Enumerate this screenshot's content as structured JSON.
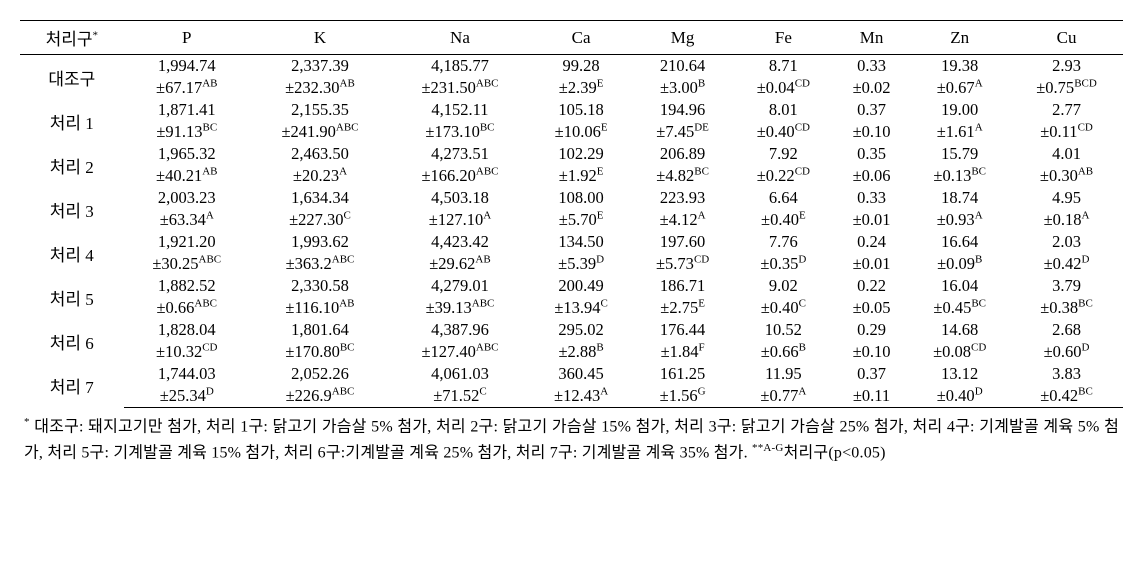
{
  "table": {
    "header_star": "*",
    "columns": [
      "처리구",
      "P",
      "K",
      "Na",
      "Ca",
      "Mg",
      "Fe",
      "Mn",
      "Zn",
      "Cu"
    ],
    "rows": [
      {
        "label": "대조구",
        "v": [
          "1,994.74",
          "2,337.39",
          "4,185.77",
          "99.28",
          "210.64",
          "8.71",
          "0.33",
          "19.38",
          "2.93"
        ],
        "sd": [
          "±67.17",
          "±232.30",
          "±231.50",
          "±2.39",
          "±3.00",
          "±0.04",
          "±0.02",
          "±0.67",
          "±0.75"
        ],
        "sup": [
          "AB",
          "AB",
          "ABC",
          "E",
          "B",
          "CD",
          "",
          "A",
          "BCD"
        ]
      },
      {
        "label": "처리 1",
        "v": [
          "1,871.41",
          "2,155.35",
          "4,152.11",
          "105.18",
          "194.96",
          "8.01",
          "0.37",
          "19.00",
          "2.77"
        ],
        "sd": [
          "±91.13",
          "±241.90",
          "±173.10",
          "±10.06",
          "±7.45",
          "±0.40",
          "±0.10",
          "±1.61",
          "±0.11"
        ],
        "sup": [
          "BC",
          "ABC",
          "BC",
          "E",
          "DE",
          "CD",
          "",
          "A",
          "CD"
        ]
      },
      {
        "label": "처리 2",
        "v": [
          "1,965.32",
          "2,463.50",
          "4,273.51",
          "102.29",
          "206.89",
          "7.92",
          "0.35",
          "15.79",
          "4.01"
        ],
        "sd": [
          "±40.21",
          "±20.23",
          "±166.20",
          "±1.92",
          "±4.82",
          "±0.22",
          "±0.06",
          "±0.13",
          "±0.30"
        ],
        "sup": [
          "AB",
          "A",
          "ABC",
          "E",
          "BC",
          "CD",
          "",
          "BC",
          "AB"
        ]
      },
      {
        "label": "처리 3",
        "v": [
          "2,003.23",
          "1,634.34",
          "4,503.18",
          "108.00",
          "223.93",
          "6.64",
          "0.33",
          "18.74",
          "4.95"
        ],
        "sd": [
          "±63.34",
          "±227.30",
          "±127.10",
          "±5.70",
          "±4.12",
          "±0.40",
          "±0.01",
          "±0.93",
          "±0.18"
        ],
        "sup": [
          "A",
          "C",
          "A",
          "E",
          "A",
          "E",
          "",
          "A",
          "A"
        ]
      },
      {
        "label": "처리 4",
        "v": [
          "1,921.20",
          "1,993.62",
          "4,423.42",
          "134.50",
          "197.60",
          "7.76",
          "0.24",
          "16.64",
          "2.03"
        ],
        "sd": [
          "±30.25",
          "±363.2",
          "±29.62",
          "±5.39",
          "±5.73",
          "±0.35",
          "±0.01",
          "±0.09",
          "±0.42"
        ],
        "sup": [
          "ABC",
          "ABC",
          "AB",
          "D",
          "CD",
          "D",
          "",
          "B",
          "D"
        ]
      },
      {
        "label": "처리 5",
        "v": [
          "1,882.52",
          "2,330.58",
          "4,279.01",
          "200.49",
          "186.71",
          "9.02",
          "0.22",
          "16.04",
          "3.79"
        ],
        "sd": [
          "±0.66",
          "±116.10",
          "±39.13",
          "±13.94",
          "±2.75",
          "±0.40",
          "±0.05",
          "±0.45",
          "±0.38"
        ],
        "sup": [
          "ABC",
          "AB",
          "ABC",
          "C",
          "E",
          "C",
          "",
          "BC",
          "BC"
        ]
      },
      {
        "label": "처리 6",
        "v": [
          "1,828.04",
          "1,801.64",
          "4,387.96",
          "295.02",
          "176.44",
          "10.52",
          "0.29",
          "14.68",
          "2.68"
        ],
        "sd": [
          "±10.32",
          "±170.80",
          "±127.40",
          "±2.88",
          "±1.84",
          "±0.66",
          "±0.10",
          "±0.08",
          "±0.60"
        ],
        "sup": [
          "CD",
          "BC",
          "ABC",
          "B",
          "F",
          "B",
          "",
          "CD",
          "D"
        ]
      },
      {
        "label": "처리 7",
        "v": [
          "1,744.03",
          "2,052.26",
          "4,061.03",
          "360.45",
          "161.25",
          "11.95",
          "0.37",
          "13.12",
          "3.83"
        ],
        "sd": [
          "±25.34",
          "±226.9",
          "±71.52",
          "±12.43",
          "±1.56",
          "±0.77",
          "±0.11",
          "±0.40",
          "±0.42"
        ],
        "sup": [
          "D",
          "ABC",
          "C",
          "A",
          "G",
          "A",
          "",
          "D",
          "BC"
        ]
      }
    ]
  },
  "footnote": {
    "star": "*",
    "text1": " 대조구:  돼지고기만 첨가, 처리 1구: 닭고기 가슴살 5% 첨가, 처리 2구: 닭고기 가슴살 15% 첨가, 처리 3구: 닭고기 가슴살 25% 첨가, 처리 4구: 기계발골 계육 5% 첨가, 처리 5구: 기계발골 계육 15% 첨가, 처리 6구:기계발골 계육 25% 첨가, 처리 7구: 기계발골 계육 35% 첨가.   ",
    "star2": "**A-G",
    "text2": "처리구(p<0.05)"
  },
  "style": {
    "background_color": "#ffffff",
    "text_color": "#000000",
    "border_color": "#000000",
    "header_fontsize": 17,
    "cell_fontsize": 16.5,
    "footnote_fontsize": 16,
    "sup_fontsize": 11,
    "n_data_cols": 9
  }
}
